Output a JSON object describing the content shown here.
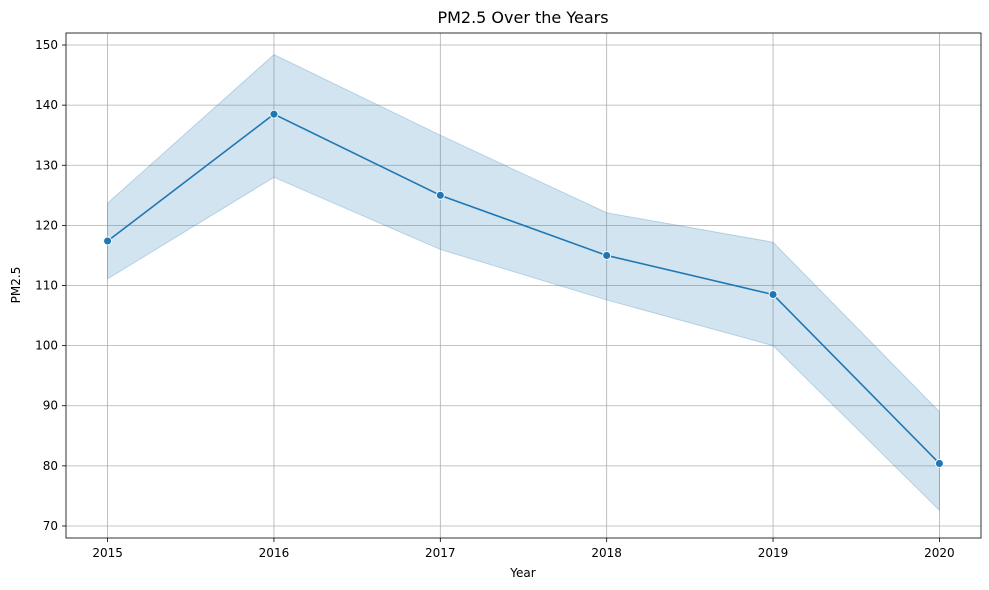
{
  "chart_data": {
    "type": "line",
    "title": "PM2.5 Over the Years",
    "xlabel": "Year",
    "ylabel": "PM2.5",
    "x": [
      2015,
      2016,
      2017,
      2018,
      2019,
      2020
    ],
    "x_tick_labels": [
      "2015",
      "2016",
      "2017",
      "2018",
      "2019",
      "2020"
    ],
    "y_ticks": [
      70,
      80,
      90,
      100,
      110,
      120,
      130,
      140,
      150
    ],
    "y_tick_labels": [
      "70",
      "80",
      "90",
      "100",
      "110",
      "120",
      "130",
      "140",
      "150"
    ],
    "xlim": [
      2014.75,
      2020.25
    ],
    "ylim": [
      68,
      152
    ],
    "grid": true,
    "legend": false,
    "series": [
      {
        "values": [
          117.4,
          138.5,
          125.0,
          115.0,
          108.5,
          80.4
        ],
        "ci_upper": [
          123.7,
          148.4,
          135.0,
          122.1,
          117.2,
          89.0
        ],
        "ci_lower": [
          111.1,
          128.0,
          116.0,
          107.6,
          100.0,
          72.6
        ],
        "color": "#1f77b4",
        "band_color": "#1f77b4",
        "marker": "circle"
      }
    ]
  }
}
